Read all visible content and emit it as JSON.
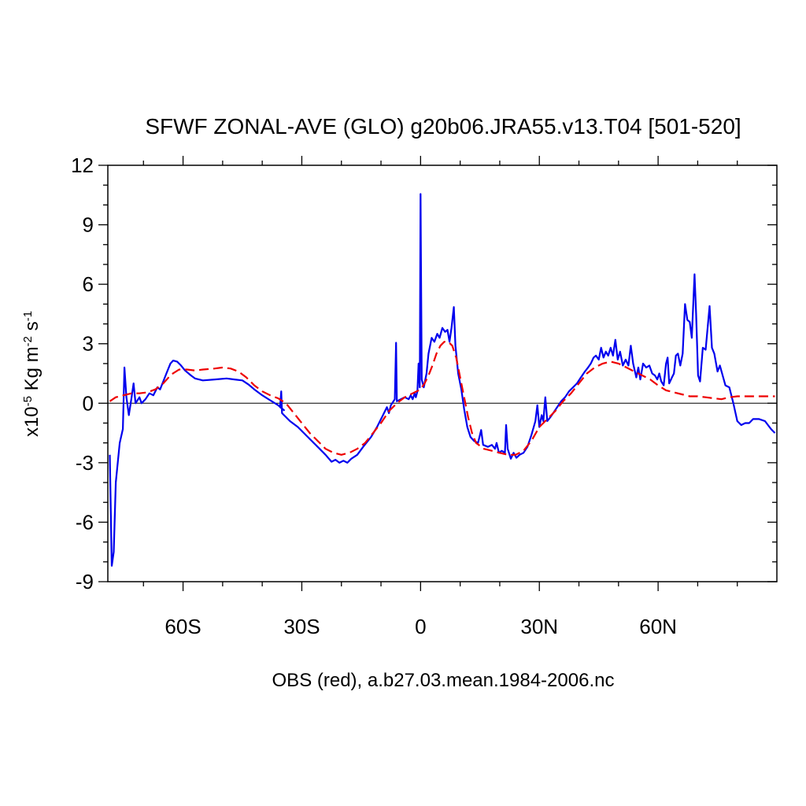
{
  "chart_data": {
    "type": "line",
    "title": "SFWF ZONAL-AVE (GLO) g20b06.JRA55.v13.T04 [501-520]",
    "xlabel": "OBS (red), a.b27.03.mean.1984-2006.nc",
    "ylabel_base": "x10",
    "ylabel_exp": "-5",
    "ylabel_unit1": " Kg m",
    "ylabel_exp2": "-2",
    "ylabel_unit2": " s",
    "ylabel_exp3": "-1",
    "xlim": [
      -79,
      90
    ],
    "ylim": [
      -9,
      12
    ],
    "x_ticks": [
      {
        "value": -60,
        "label": "60S"
      },
      {
        "value": -30,
        "label": "30S"
      },
      {
        "value": 0,
        "label": "0"
      },
      {
        "value": 30,
        "label": "30N"
      },
      {
        "value": 60,
        "label": "60N"
      }
    ],
    "y_ticks": [
      {
        "value": -9,
        "label": "-9"
      },
      {
        "value": -6,
        "label": "-6"
      },
      {
        "value": -3,
        "label": "-3"
      },
      {
        "value": 0,
        "label": "0"
      },
      {
        "value": 3,
        "label": "3"
      },
      {
        "value": 6,
        "label": "6"
      },
      {
        "value": 9,
        "label": "9"
      },
      {
        "value": 12,
        "label": "12"
      }
    ],
    "zero_line": true,
    "series": [
      {
        "color": "#0000ee",
        "dash": "solid",
        "points": [
          [
            -78.5,
            -2.6
          ],
          [
            -78,
            -8.2
          ],
          [
            -77.5,
            -7.5
          ],
          [
            -77,
            -4
          ],
          [
            -76,
            -2
          ],
          [
            -75.2,
            -1.3
          ],
          [
            -74.8,
            1.8
          ],
          [
            -74.3,
            0.3
          ],
          [
            -73.7,
            -0.6
          ],
          [
            -73,
            0.3
          ],
          [
            -72.5,
            1.0
          ],
          [
            -72,
            0.0
          ],
          [
            -71,
            0.3
          ],
          [
            -70.5,
            0.0
          ],
          [
            -69.5,
            0.2
          ],
          [
            -68.5,
            0.5
          ],
          [
            -67.5,
            0.4
          ],
          [
            -66.5,
            0.8
          ],
          [
            -65.8,
            0.7
          ],
          [
            -65,
            1.1
          ],
          [
            -64,
            1.6
          ],
          [
            -63.2,
            2.0
          ],
          [
            -62.5,
            2.15
          ],
          [
            -61.5,
            2.1
          ],
          [
            -60.5,
            1.9
          ],
          [
            -59.5,
            1.65
          ],
          [
            -58,
            1.4
          ],
          [
            -57,
            1.25
          ],
          [
            -55,
            1.15
          ],
          [
            -52,
            1.2
          ],
          [
            -49,
            1.25
          ],
          [
            -47,
            1.2
          ],
          [
            -45,
            1.15
          ],
          [
            -43.5,
            0.95
          ],
          [
            -42,
            0.7
          ],
          [
            -40,
            0.4
          ],
          [
            -38,
            0.15
          ],
          [
            -36,
            -0.1
          ],
          [
            -34.5,
            -0.35
          ],
          [
            -35.5,
            -0.2
          ],
          [
            -35.2,
            0.6
          ],
          [
            -35,
            -0.5
          ],
          [
            -33,
            -0.9
          ],
          [
            -31,
            -1.2
          ],
          [
            -28.5,
            -1.7
          ],
          [
            -26,
            -2.2
          ],
          [
            -24,
            -2.6
          ],
          [
            -22.5,
            -2.95
          ],
          [
            -21.5,
            -2.85
          ],
          [
            -20.5,
            -3.0
          ],
          [
            -19.5,
            -2.9
          ],
          [
            -18.5,
            -3.0
          ],
          [
            -17.5,
            -2.8
          ],
          [
            -16,
            -2.6
          ],
          [
            -14.5,
            -2.2
          ],
          [
            -12.5,
            -1.7
          ],
          [
            -11,
            -1.2
          ],
          [
            -9.5,
            -0.6
          ],
          [
            -8.5,
            -0.2
          ],
          [
            -8,
            -0.5
          ],
          [
            -7.5,
            -0.1
          ],
          [
            -6.5,
            0.2
          ],
          [
            -6.2,
            3.05
          ],
          [
            -6.0,
            0.1
          ],
          [
            -5,
            0.2
          ],
          [
            -4,
            0.3
          ],
          [
            -3,
            0.2
          ],
          [
            -2.5,
            0.4
          ],
          [
            -2,
            0.2
          ],
          [
            -1.5,
            0.5
          ],
          [
            -1.2,
            0.3
          ],
          [
            -0.8,
            0.6
          ],
          [
            -0.5,
            2.0
          ],
          [
            -0.2,
            0.8
          ],
          [
            0.0,
            10.55
          ],
          [
            0.3,
            1.2
          ],
          [
            0.8,
            0.8
          ],
          [
            1.5,
            1.5
          ],
          [
            2,
            2.5
          ],
          [
            2.8,
            3.3
          ],
          [
            3.5,
            3.1
          ],
          [
            4.2,
            3.5
          ],
          [
            4.8,
            3.3
          ],
          [
            5.5,
            3.8
          ],
          [
            6.2,
            3.6
          ],
          [
            6.8,
            3.7
          ],
          [
            7.3,
            3.1
          ],
          [
            7.8,
            3.8
          ],
          [
            8.4,
            4.85
          ],
          [
            8.8,
            2.9
          ],
          [
            9.5,
            1.5
          ],
          [
            10.3,
            0.7
          ],
          [
            11,
            -0.3
          ],
          [
            11.8,
            -1.2
          ],
          [
            12.6,
            -1.7
          ],
          [
            13.5,
            -1.9
          ],
          [
            14.5,
            -2.0
          ],
          [
            15.3,
            -1.35
          ],
          [
            15.8,
            -2.1
          ],
          [
            17,
            -2.2
          ],
          [
            18,
            -2.1
          ],
          [
            18.8,
            -2.3
          ],
          [
            19.2,
            -2.0
          ],
          [
            19.8,
            -2.5
          ],
          [
            20.5,
            -2.4
          ],
          [
            21.3,
            -2.5
          ],
          [
            21.6,
            -1.1
          ],
          [
            22,
            -2.3
          ],
          [
            22.8,
            -2.8
          ],
          [
            23.5,
            -2.5
          ],
          [
            24.2,
            -2.75
          ],
          [
            25,
            -2.6
          ],
          [
            26,
            -2.5
          ],
          [
            27,
            -2.2
          ],
          [
            28,
            -1.6
          ],
          [
            29,
            -0.9
          ],
          [
            29.5,
            -0.1
          ],
          [
            30,
            -1.2
          ],
          [
            30.6,
            -0.6
          ],
          [
            31,
            -0.9
          ],
          [
            31.5,
            0.3
          ],
          [
            32,
            -0.9
          ],
          [
            32.8,
            -0.7
          ],
          [
            33.5,
            -0.5
          ],
          [
            34.5,
            -0.2
          ],
          [
            35.5,
            0.1
          ],
          [
            36.5,
            0.3
          ],
          [
            37.5,
            0.6
          ],
          [
            38.5,
            0.8
          ],
          [
            39.5,
            1.0
          ],
          [
            40.5,
            1.3
          ],
          [
            41.5,
            1.6
          ],
          [
            42.3,
            1.8
          ],
          [
            43,
            2.0
          ],
          [
            43.7,
            2.3
          ],
          [
            44.3,
            2.4
          ],
          [
            45,
            2.2
          ],
          [
            45.6,
            2.8
          ],
          [
            46.2,
            2.3
          ],
          [
            46.8,
            2.6
          ],
          [
            47.4,
            2.4
          ],
          [
            48,
            2.8
          ],
          [
            48.6,
            2.4
          ],
          [
            49.2,
            3.2
          ],
          [
            49.8,
            2.2
          ],
          [
            50.4,
            2.6
          ],
          [
            51.1,
            1.9
          ],
          [
            51.8,
            2.2
          ],
          [
            52.5,
            1.9
          ],
          [
            53.1,
            2.9
          ],
          [
            53.7,
            2.0
          ],
          [
            54.5,
            1.3
          ],
          [
            55,
            1.8
          ],
          [
            55.5,
            1.2
          ],
          [
            56.2,
            2.0
          ],
          [
            57,
            1.8
          ],
          [
            57.8,
            1.9
          ],
          [
            58.5,
            1.5
          ],
          [
            59.2,
            1.4
          ],
          [
            59.8,
            1.2
          ],
          [
            60.3,
            1.5
          ],
          [
            60.8,
            1.1
          ],
          [
            61.4,
            0.9
          ],
          [
            62,
            2.0
          ],
          [
            62.4,
            2.3
          ],
          [
            62.8,
            1.0
          ],
          [
            63.5,
            1.3
          ],
          [
            64,
            1.5
          ],
          [
            64.5,
            2.4
          ],
          [
            65,
            2.5
          ],
          [
            65.6,
            1.9
          ],
          [
            66.2,
            2.5
          ],
          [
            66.8,
            5.0
          ],
          [
            67.4,
            4.2
          ],
          [
            68,
            4.1
          ],
          [
            68.5,
            3.3
          ],
          [
            69.2,
            6.5
          ],
          [
            69.6,
            4.5
          ],
          [
            70.1,
            1.4
          ],
          [
            70.6,
            1.1
          ],
          [
            71.3,
            2.8
          ],
          [
            72,
            2.7
          ],
          [
            73,
            4.9
          ],
          [
            73.6,
            2.8
          ],
          [
            74.2,
            2.5
          ],
          [
            75,
            1.6
          ],
          [
            75.6,
            1.9
          ],
          [
            76.3,
            1.4
          ],
          [
            77,
            0.9
          ],
          [
            78,
            0.8
          ],
          [
            79,
            0.0
          ],
          [
            80,
            -0.9
          ],
          [
            81,
            -1.1
          ],
          [
            82,
            -1.0
          ],
          [
            83,
            -1.0
          ],
          [
            84,
            -0.8
          ],
          [
            85.5,
            -0.8
          ],
          [
            87,
            -0.9
          ],
          [
            88.5,
            -1.3
          ],
          [
            89.5,
            -1.5
          ]
        ]
      },
      {
        "color": "#ee0000",
        "dash": "dashed",
        "points": [
          [
            -78.5,
            0.1
          ],
          [
            -77,
            0.3
          ],
          [
            -75,
            0.4
          ],
          [
            -73,
            0.5
          ],
          [
            -71,
            0.5
          ],
          [
            -69,
            0.55
          ],
          [
            -67,
            0.7
          ],
          [
            -65,
            1.0
          ],
          [
            -63,
            1.45
          ],
          [
            -61,
            1.7
          ],
          [
            -59,
            1.7
          ],
          [
            -57,
            1.65
          ],
          [
            -55,
            1.7
          ],
          [
            -52,
            1.75
          ],
          [
            -50,
            1.8
          ],
          [
            -48,
            1.75
          ],
          [
            -46,
            1.6
          ],
          [
            -44,
            1.3
          ],
          [
            -42,
            0.9
          ],
          [
            -40,
            0.6
          ],
          [
            -38,
            0.4
          ],
          [
            -36,
            0.25
          ],
          [
            -34,
            0.0
          ],
          [
            -32,
            -0.5
          ],
          [
            -30,
            -1.0
          ],
          [
            -28,
            -1.5
          ],
          [
            -26,
            -1.9
          ],
          [
            -24,
            -2.3
          ],
          [
            -22,
            -2.5
          ],
          [
            -20,
            -2.6
          ],
          [
            -18,
            -2.5
          ],
          [
            -16,
            -2.3
          ],
          [
            -14,
            -2.0
          ],
          [
            -12,
            -1.5
          ],
          [
            -10,
            -1.0
          ],
          [
            -8,
            -0.4
          ],
          [
            -6,
            0.0
          ],
          [
            -4,
            0.3
          ],
          [
            -2,
            0.5
          ],
          [
            0,
            0.7
          ],
          [
            1,
            1.0
          ],
          [
            2,
            1.4
          ],
          [
            3,
            1.9
          ],
          [
            4,
            2.5
          ],
          [
            5,
            2.9
          ],
          [
            6,
            3.1
          ],
          [
            7,
            3.1
          ],
          [
            8,
            2.9
          ],
          [
            9,
            2.3
          ],
          [
            10,
            1.3
          ],
          [
            11,
            0.3
          ],
          [
            12,
            -0.7
          ],
          [
            13,
            -1.5
          ],
          [
            14,
            -2.0
          ],
          [
            16,
            -2.3
          ],
          [
            18,
            -2.4
          ],
          [
            20,
            -2.5
          ],
          [
            22,
            -2.6
          ],
          [
            24,
            -2.6
          ],
          [
            26,
            -2.4
          ],
          [
            28,
            -1.9
          ],
          [
            30,
            -1.2
          ],
          [
            32,
            -0.8
          ],
          [
            34,
            -0.4
          ],
          [
            36,
            0.1
          ],
          [
            38,
            0.5
          ],
          [
            40,
            1.0
          ],
          [
            42,
            1.5
          ],
          [
            44,
            1.8
          ],
          [
            46,
            2.0
          ],
          [
            48,
            2.1
          ],
          [
            50,
            2.0
          ],
          [
            52,
            1.8
          ],
          [
            54,
            1.6
          ],
          [
            56,
            1.4
          ],
          [
            58,
            1.2
          ],
          [
            60,
            0.9
          ],
          [
            62,
            0.65
          ],
          [
            64,
            0.55
          ],
          [
            66,
            0.45
          ],
          [
            68,
            0.35
          ],
          [
            70,
            0.35
          ],
          [
            72,
            0.3
          ],
          [
            74,
            0.25
          ],
          [
            76,
            0.2
          ],
          [
            78,
            0.3
          ],
          [
            80,
            0.35
          ],
          [
            82,
            0.35
          ],
          [
            84,
            0.35
          ],
          [
            86,
            0.35
          ],
          [
            89.5,
            0.35
          ]
        ]
      }
    ]
  }
}
